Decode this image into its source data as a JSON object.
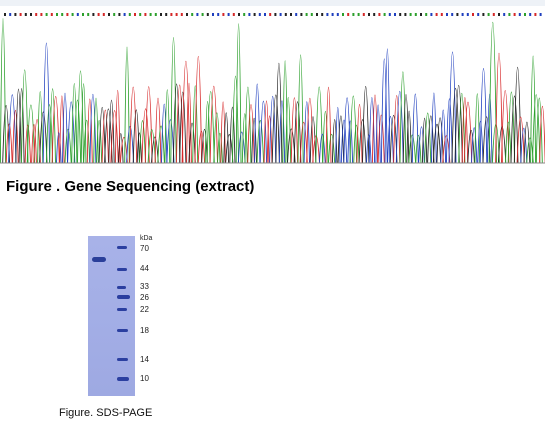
{
  "figure_sequencing": {
    "caption": "Figure . Gene Sequencing (extract)",
    "trace_colors": {
      "A": "#2ca02c",
      "C": "#1f3fbf",
      "G": "#222222",
      "T": "#d62728"
    }
  },
  "figure_sds": {
    "caption": "Figure. SDS-PAGE",
    "unit": "kDa",
    "marker_kda": [
      "70",
      "44",
      "33",
      "26",
      "22",
      "18",
      "14",
      "10"
    ],
    "sample_band_kda": 50
  }
}
